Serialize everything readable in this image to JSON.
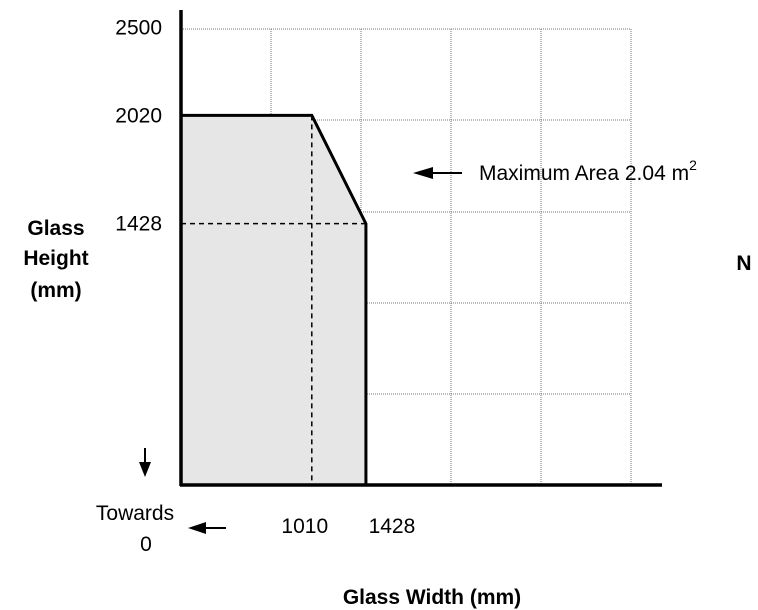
{
  "chart_data": {
    "type": "area",
    "title": "",
    "xlabel": "Glass Width (mm)",
    "ylabel": [
      "Glass",
      "Height",
      "(mm)"
    ],
    "x_ticks_labeled": [
      "1010",
      "1428"
    ],
    "y_ticks_labeled": [
      "2500",
      "2020",
      "1428"
    ],
    "series": [
      {
        "x": [
          0,
          1010,
          1428,
          1428
        ],
        "y": [
          2020,
          2020,
          1428,
          0
        ]
      }
    ],
    "reference_points": [
      {
        "x": 1010,
        "y": 2020
      },
      {
        "x": 1428,
        "y": 1428
      }
    ],
    "annotation": {
      "text": "Maximum Area 2.04 m",
      "superscript": "2"
    },
    "origin_note": [
      "Towards",
      "0"
    ],
    "side_label": "N",
    "grid": true,
    "fill_color": "#e6e6e6"
  }
}
